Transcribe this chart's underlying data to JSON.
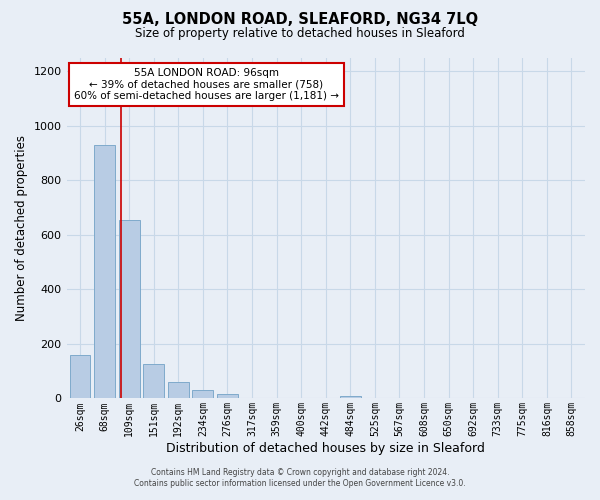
{
  "title": "55A, LONDON ROAD, SLEAFORD, NG34 7LQ",
  "subtitle": "Size of property relative to detached houses in Sleaford",
  "xlabel": "Distribution of detached houses by size in Sleaford",
  "ylabel": "Number of detached properties",
  "bar_labels": [
    "26sqm",
    "68sqm",
    "109sqm",
    "151sqm",
    "192sqm",
    "234sqm",
    "276sqm",
    "317sqm",
    "359sqm",
    "400sqm",
    "442sqm",
    "484sqm",
    "525sqm",
    "567sqm",
    "608sqm",
    "650sqm",
    "692sqm",
    "733sqm",
    "775sqm",
    "816sqm",
    "858sqm"
  ],
  "bar_values": [
    160,
    930,
    655,
    128,
    62,
    30,
    15,
    0,
    0,
    0,
    0,
    10,
    0,
    0,
    0,
    0,
    0,
    0,
    0,
    0,
    0
  ],
  "bar_color": "#b8cce4",
  "bar_edge_color": "#7faacc",
  "annotation_title": "55A LONDON ROAD: 96sqm",
  "annotation_line1": "← 39% of detached houses are smaller (758)",
  "annotation_line2": "60% of semi-detached houses are larger (1,181) →",
  "annotation_box_color": "#ffffff",
  "annotation_border_color": "#cc0000",
  "vline_color": "#cc0000",
  "ylim": [
    0,
    1250
  ],
  "yticks": [
    0,
    200,
    400,
    600,
    800,
    1000,
    1200
  ],
  "grid_color": "#c8d8e8",
  "bg_color": "#e8eef6",
  "footer1": "Contains HM Land Registry data © Crown copyright and database right 2024.",
  "footer2": "Contains public sector information licensed under the Open Government Licence v3.0."
}
